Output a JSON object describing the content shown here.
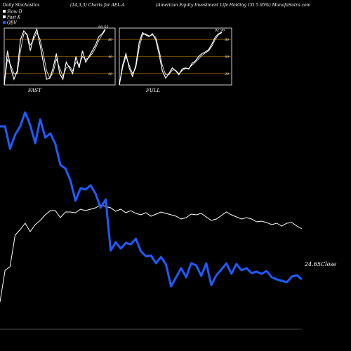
{
  "header": {
    "title": "Daily Stochastics",
    "params": "(14,3,3) Charts for AEL-A",
    "company": "(American  Equity Investment Life  Holding CO 5.95%) MunafaSutra.com"
  },
  "legend": {
    "items": [
      {
        "label": "Slow  D",
        "color": "#ffffff"
      },
      {
        "label": "Fast  K",
        "color": "#ffffff"
      },
      {
        "label": "OBV",
        "color": "#1f5bff"
      }
    ]
  },
  "colors": {
    "background": "#000000",
    "obv": "#1f5bff",
    "price": "#ffffff",
    "level_line": "#8b5a00"
  },
  "chart_data": [
    {
      "type": "line",
      "name": "stochastic-fast",
      "caption": "FAST",
      "ylim": [
        0,
        100
      ],
      "levels": [
        20,
        50,
        80
      ],
      "tick_labels": [
        "80",
        "50",
        "20"
      ],
      "last_value_label": "98.55",
      "series": [
        {
          "values": [
            0,
            60,
            30,
            10,
            25,
            80,
            95,
            88,
            60,
            85,
            98,
            70,
            40,
            10,
            12,
            30,
            55,
            20,
            10,
            40,
            30,
            20,
            50,
            30,
            60,
            40,
            50,
            60,
            70,
            85,
            90,
            98.55
          ]
        },
        {
          "values": [
            0,
            45,
            35,
            20,
            20,
            60,
            90,
            90,
            70,
            80,
            92,
            80,
            55,
            25,
            12,
            22,
            45,
            30,
            15,
            30,
            33,
            25,
            40,
            35,
            50,
            45,
            48,
            55,
            65,
            78,
            88,
            96
          ]
        }
      ]
    },
    {
      "type": "line",
      "name": "stochastic-full",
      "caption": "FULL",
      "ylim": [
        0,
        100
      ],
      "levels": [
        20,
        50,
        80
      ],
      "tick_labels": [
        "80",
        "50",
        "20"
      ],
      "last_value_label": "92.96",
      "series": [
        {
          "values": [
            0,
            35,
            55,
            30,
            15,
            35,
            75,
            92,
            88,
            85,
            90,
            80,
            55,
            25,
            12,
            20,
            30,
            25,
            18,
            28,
            30,
            28,
            38,
            42,
            50,
            55,
            58,
            62,
            72,
            84,
            90,
            92.96
          ]
        },
        {
          "values": [
            0,
            30,
            50,
            35,
            20,
            30,
            65,
            88,
            90,
            86,
            88,
            84,
            62,
            35,
            18,
            18,
            26,
            26,
            20,
            25,
            29,
            29,
            35,
            40,
            46,
            52,
            56,
            60,
            68,
            80,
            88,
            92
          ]
        }
      ]
    },
    {
      "type": "line",
      "name": "obv-and-close",
      "series": [
        {
          "name": "OBV",
          "values": [
            180,
            180,
            212,
            192,
            180,
            160,
            178,
            204,
            170,
            196,
            190,
            205,
            235,
            240,
            257,
            286,
            268,
            270,
            264,
            276,
            296,
            284,
            357,
            345,
            354,
            346,
            348,
            340,
            358,
            365,
            364,
            375,
            366,
            377,
            408,
            395,
            382,
            395,
            375,
            378,
            393,
            375,
            406,
            392,
            384,
            375,
            390,
            376,
            385,
            382,
            389,
            387,
            390,
            386,
            395,
            398,
            400,
            402,
            394,
            392,
            398
          ]
        },
        {
          "name": "Close",
          "values": [
            430,
            385,
            380,
            335,
            327,
            318,
            330,
            320,
            314,
            306,
            300,
            300,
            310,
            302,
            302,
            303,
            298,
            300,
            298,
            296,
            292,
            294,
            296,
            301,
            298,
            303,
            300,
            304,
            306,
            303,
            308,
            305,
            302,
            304,
            306,
            308,
            312,
            310,
            305,
            306,
            304,
            309,
            314,
            312,
            307,
            302,
            306,
            309,
            312,
            310,
            312,
            316,
            315,
            317,
            320,
            318,
            322,
            318,
            317,
            322,
            326
          ]
        }
      ],
      "last_close_label": "24.65Close"
    }
  ]
}
